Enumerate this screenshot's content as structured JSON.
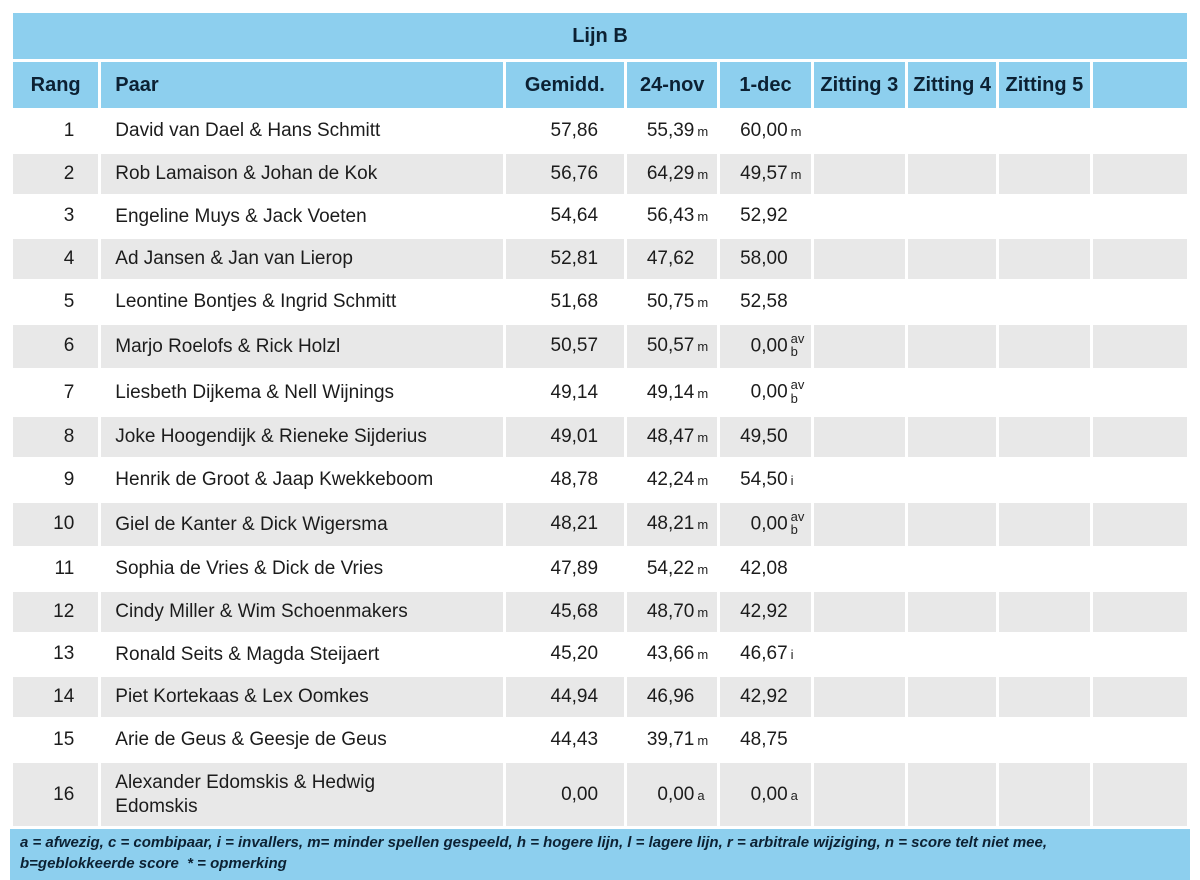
{
  "title": "Lijn B",
  "columns": [
    "Rang",
    "Paar",
    "Gemidd.",
    "24-nov",
    "1-dec",
    "Zitting 3",
    "Zitting 4",
    "Zitting 5",
    ""
  ],
  "rows": [
    {
      "rank": "1",
      "pair": "David van Dael & Hans Schmitt",
      "avg": "57,86",
      "s1": {
        "value": "55,39",
        "marker": "m"
      },
      "s2": {
        "value": "60,00",
        "marker": "m"
      }
    },
    {
      "rank": "2",
      "pair": "Rob Lamaison & Johan de Kok",
      "avg": "56,76",
      "s1": {
        "value": "64,29",
        "marker": "m"
      },
      "s2": {
        "value": "49,57",
        "marker": "m"
      }
    },
    {
      "rank": "3",
      "pair": "Engeline Muys & Jack Voeten",
      "avg": "54,64",
      "s1": {
        "value": "56,43",
        "marker": "m"
      },
      "s2": {
        "value": "52,92",
        "marker": ""
      }
    },
    {
      "rank": "4",
      "pair": "Ad Jansen & Jan van Lierop",
      "avg": "52,81",
      "s1": {
        "value": "47,62",
        "marker": ""
      },
      "s2": {
        "value": "58,00",
        "marker": ""
      }
    },
    {
      "rank": "5",
      "pair": "Leontine Bontjes & Ingrid Schmitt",
      "avg": "51,68",
      "s1": {
        "value": "50,75",
        "marker": "m"
      },
      "s2": {
        "value": "52,58",
        "marker": ""
      }
    },
    {
      "rank": "6",
      "pair": "Marjo Roelofs & Rick Holzl",
      "avg": "50,57",
      "s1": {
        "value": "50,57",
        "marker": "m"
      },
      "s2": {
        "value": "0,00",
        "marker_top": "av",
        "marker_bottom": "b"
      }
    },
    {
      "rank": "7",
      "pair": "Liesbeth Dijkema & Nell Wijnings",
      "avg": "49,14",
      "s1": {
        "value": "49,14",
        "marker": "m"
      },
      "s2": {
        "value": "0,00",
        "marker_top": "av",
        "marker_bottom": "b"
      }
    },
    {
      "rank": "8",
      "pair": "Joke Hoogendijk & Rieneke Sijderius",
      "avg": "49,01",
      "s1": {
        "value": "48,47",
        "marker": "m"
      },
      "s2": {
        "value": "49,50",
        "marker": ""
      }
    },
    {
      "rank": "9",
      "pair": "Henrik de Groot & Jaap Kwekkeboom",
      "avg": "48,78",
      "s1": {
        "value": "42,24",
        "marker": "m"
      },
      "s2": {
        "value": "54,50",
        "marker": "i"
      }
    },
    {
      "rank": "10",
      "pair": "Giel de Kanter & Dick Wigersma",
      "avg": "48,21",
      "s1": {
        "value": "48,21",
        "marker": "m"
      },
      "s2": {
        "value": "0,00",
        "marker_top": "av",
        "marker_bottom": "b"
      }
    },
    {
      "rank": "11",
      "pair": "Sophia de Vries & Dick de Vries",
      "avg": "47,89",
      "s1": {
        "value": "54,22",
        "marker": "m"
      },
      "s2": {
        "value": "42,08",
        "marker": ""
      }
    },
    {
      "rank": "12",
      "pair": "Cindy Miller & Wim Schoenmakers",
      "avg": "45,68",
      "s1": {
        "value": "48,70",
        "marker": "m"
      },
      "s2": {
        "value": "42,92",
        "marker": ""
      }
    },
    {
      "rank": "13",
      "pair": "Ronald Seits & Magda Steijaert",
      "avg": "45,20",
      "s1": {
        "value": "43,66",
        "marker": "m"
      },
      "s2": {
        "value": "46,67",
        "marker": "i"
      }
    },
    {
      "rank": "14",
      "pair": "Piet Kortekaas & Lex Oomkes",
      "avg": "44,94",
      "s1": {
        "value": "46,96",
        "marker": ""
      },
      "s2": {
        "value": "42,92",
        "marker": ""
      }
    },
    {
      "rank": "15",
      "pair": "Arie de Geus & Geesje de Geus",
      "avg": "44,43",
      "s1": {
        "value": "39,71",
        "marker": "m"
      },
      "s2": {
        "value": "48,75",
        "marker": ""
      }
    },
    {
      "rank": "16",
      "pair": "Alexander Edomskis & Hedwig\nEdomskis",
      "avg": "0,00",
      "s1": {
        "value": "0,00",
        "marker": "a"
      },
      "s2": {
        "value": "0,00",
        "marker": "a"
      }
    }
  ],
  "legend": {
    "line1": "a = afwezig, c = combipaar, i = invallers, m= minder spellen gespeeld, h = hogere lijn, l = lagere lijn, r = arbitrale wijziging, n = score telt niet mee,",
    "line2": "b=geblokkeerde score  * = opmerking"
  },
  "colors": {
    "header_blue": "#8dcfee",
    "stripe_gray": "#e8e8e8",
    "navy_text": "#0c2133"
  }
}
